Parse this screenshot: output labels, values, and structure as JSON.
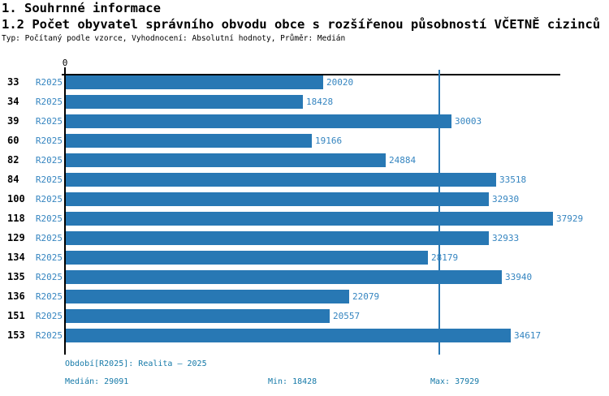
{
  "header": {
    "section_title": "1. Souhrnné informace",
    "chart_title": "1.2 Počet obyvatel správního obvodu obce s rozšířenou působností VČETNĚ cizinců",
    "chart_subtitle": "Typ: Počítaný podle vzorce, Vyhodnocení: Absolutní hodnoty, Průměr: Medián"
  },
  "chart_data": {
    "type": "bar",
    "orientation": "horizontal",
    "title": "1.2 Počet obyvatel správního obvodu obce s rozšířenou působností VČETNĚ cizinců",
    "categories": [
      "33",
      "34",
      "39",
      "60",
      "82",
      "84",
      "100",
      "118",
      "129",
      "134",
      "135",
      "136",
      "151",
      "153"
    ],
    "series": [
      {
        "name": "R2025",
        "values": [
          20020,
          18428,
          30003,
          19166,
          24884,
          33518,
          32930,
          37929,
          32933,
          28179,
          33940,
          22079,
          20557,
          34617
        ]
      }
    ],
    "axis_origin_tick_label": "0",
    "xlim": [
      0,
      38560
    ],
    "grid": false,
    "median_reference_line": 29091,
    "median": 29091,
    "min": 18428,
    "max": 37929,
    "bar_color": "#2878B4",
    "value_label_color": "#3585C0",
    "median_line_color": "#2878B4",
    "footer_text_color": "#1579A8"
  },
  "footer": {
    "period": "Období[R2025]: Realita – 2025",
    "median": "Medián: 29091",
    "min": "Min: 18428",
    "max": "Max: 37929"
  }
}
